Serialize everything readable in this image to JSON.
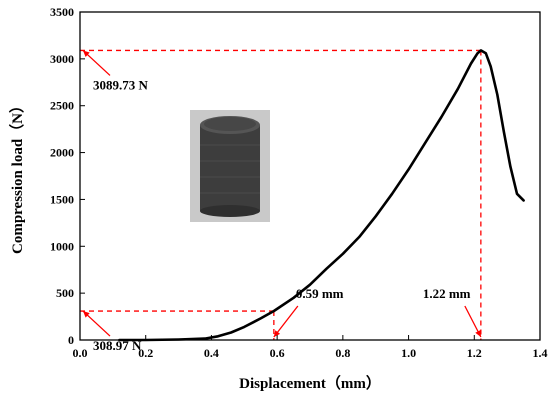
{
  "chart_data": {
    "type": "line",
    "xlabel": "Displacement（mm）",
    "ylabel": "Compression load（N）",
    "xlim": [
      0.0,
      1.4
    ],
    "ylim": [
      0,
      3500
    ],
    "x_ticks": [
      "0.0",
      "0.2",
      "0.4",
      "0.6",
      "0.8",
      "1.0",
      "1.2",
      "1.4"
    ],
    "y_ticks": [
      "0",
      "500",
      "1000",
      "1500",
      "2000",
      "2500",
      "3000",
      "3500"
    ],
    "grid": false,
    "legend": "none",
    "series": [
      {
        "color": "#000000",
        "x": [
          0.12,
          0.2,
          0.3,
          0.38,
          0.42,
          0.46,
          0.5,
          0.55,
          0.59,
          0.65,
          0.7,
          0.75,
          0.8,
          0.85,
          0.9,
          0.95,
          1.0,
          1.05,
          1.1,
          1.15,
          1.19,
          1.21,
          1.22,
          1.235,
          1.25,
          1.27,
          1.29,
          1.31,
          1.33,
          1.35
        ],
        "y": [
          0,
          0,
          5,
          15,
          40,
          80,
          140,
          230,
          309,
          450,
          590,
          760,
          920,
          1100,
          1320,
          1560,
          1820,
          2100,
          2380,
          2680,
          2950,
          3060,
          3090,
          3060,
          2920,
          2620,
          2220,
          1850,
          1560,
          1490
        ]
      }
    ],
    "annotations": [
      {
        "type": "point",
        "x": 1.22,
        "y": 3089.73,
        "label": "3089.73 N",
        "target": "y"
      },
      {
        "type": "point",
        "x": 1.22,
        "y": 3089.73,
        "label": "1.22 mm",
        "target": "x"
      },
      {
        "type": "point",
        "x": 0.59,
        "y": 308.97,
        "label": "308.97 N",
        "target": "y"
      },
      {
        "type": "point",
        "x": 0.59,
        "y": 308.97,
        "label": "0.59 mm",
        "target": "x"
      }
    ],
    "guide_color": "#ff0000",
    "inset_image": "dark-cylinder-specimen-photo"
  }
}
